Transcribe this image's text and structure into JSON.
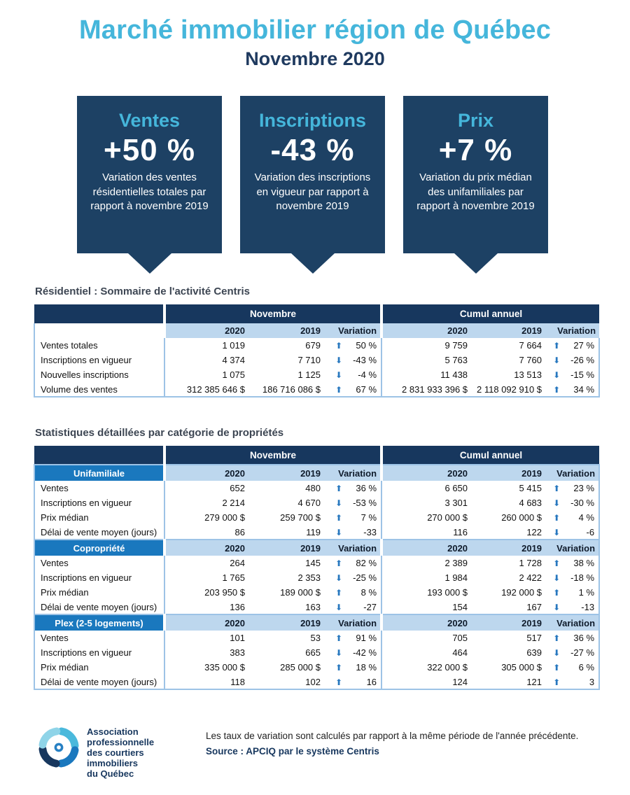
{
  "page": {
    "title": "Marché immobilier région de Québec",
    "subtitle": "Novembre 2020"
  },
  "callouts": [
    {
      "label": "Ventes",
      "value": "+50 %",
      "desc": "Variation des ventes résidentielles totales par rapport à novembre 2019"
    },
    {
      "label": "Inscriptions",
      "value": "-43 %",
      "desc": "Variation des inscriptions en vigueur par rapport à novembre 2019"
    },
    {
      "label": "Prix",
      "value": "+7 %",
      "desc": "Variation du prix médian des unifamiliales par rapport à novembre 2019"
    }
  ],
  "columns": {
    "group_month": "Novembre",
    "group_cumul": "Cumul annuel",
    "y2020": "2020",
    "y2019": "2019",
    "variation": "Variation"
  },
  "summary_table": {
    "title": "Résidentiel : Sommaire de l'activité Centris",
    "rows": [
      {
        "label": "Ventes totales",
        "nov": [
          "1 019",
          "679",
          "up",
          "50 %"
        ],
        "cum": [
          "9 759",
          "7 664",
          "up",
          "27 %"
        ]
      },
      {
        "label": "Inscriptions en vigueur",
        "nov": [
          "4 374",
          "7 710",
          "down",
          "-43 %"
        ],
        "cum": [
          "5 763",
          "7 760",
          "down",
          "-26 %"
        ]
      },
      {
        "label": "Nouvelles inscriptions",
        "nov": [
          "1 075",
          "1 125",
          "down",
          "-4 %"
        ],
        "cum": [
          "11 438",
          "13 513",
          "down",
          "-15 %"
        ]
      },
      {
        "label": "Volume des ventes",
        "nov": [
          "312 385 646 $",
          "186 716 086 $",
          "up",
          "67 %"
        ],
        "cum": [
          "2 831 933 396 $",
          "2 118 092 910 $",
          "up",
          "34 %"
        ]
      }
    ]
  },
  "detail_table": {
    "title": "Statistiques détaillées par catégorie de propriétés",
    "categories": [
      {
        "name": "Unifamiliale",
        "rows": [
          {
            "label": "Ventes",
            "nov": [
              "652",
              "480",
              "up",
              "36 %"
            ],
            "cum": [
              "6 650",
              "5 415",
              "up",
              "23 %"
            ]
          },
          {
            "label": "Inscriptions en vigueur",
            "nov": [
              "2 214",
              "4 670",
              "down",
              "-53 %"
            ],
            "cum": [
              "3 301",
              "4 683",
              "down",
              "-30 %"
            ]
          },
          {
            "label": "Prix médian",
            "nov": [
              "279 000 $",
              "259 700 $",
              "up",
              "7 %"
            ],
            "cum": [
              "270 000 $",
              "260 000 $",
              "up",
              "4 %"
            ]
          },
          {
            "label": "Délai de vente moyen (jours)",
            "nov": [
              "86",
              "119",
              "down",
              "-33"
            ],
            "cum": [
              "116",
              "122",
              "down",
              "-6"
            ]
          }
        ]
      },
      {
        "name": "Copropriété",
        "rows": [
          {
            "label": "Ventes",
            "nov": [
              "264",
              "145",
              "up",
              "82 %"
            ],
            "cum": [
              "2 389",
              "1 728",
              "up",
              "38 %"
            ]
          },
          {
            "label": "Inscriptions en vigueur",
            "nov": [
              "1 765",
              "2 353",
              "down",
              "-25 %"
            ],
            "cum": [
              "1 984",
              "2 422",
              "down",
              "-18 %"
            ]
          },
          {
            "label": "Prix médian",
            "nov": [
              "203 950 $",
              "189 000 $",
              "up",
              "8 %"
            ],
            "cum": [
              "193 000 $",
              "192 000 $",
              "up",
              "1 %"
            ]
          },
          {
            "label": "Délai de vente moyen (jours)",
            "nov": [
              "136",
              "163",
              "down",
              "-27"
            ],
            "cum": [
              "154",
              "167",
              "down",
              "-13"
            ]
          }
        ]
      },
      {
        "name": "Plex (2-5 logements)",
        "rows": [
          {
            "label": "Ventes",
            "nov": [
              "101",
              "53",
              "up",
              "91 %"
            ],
            "cum": [
              "705",
              "517",
              "up",
              "36 %"
            ]
          },
          {
            "label": "Inscriptions en vigueur",
            "nov": [
              "383",
              "665",
              "down",
              "-42 %"
            ],
            "cum": [
              "464",
              "639",
              "down",
              "-27 %"
            ]
          },
          {
            "label": "Prix médian",
            "nov": [
              "335 000 $",
              "285 000 $",
              "up",
              "18 %"
            ],
            "cum": [
              "322 000 $",
              "305 000 $",
              "up",
              "6 %"
            ]
          },
          {
            "label": "Délai de vente moyen (jours)",
            "nov": [
              "118",
              "102",
              "up",
              "16"
            ],
            "cum": [
              "124",
              "121",
              "up",
              "3"
            ]
          }
        ]
      }
    ]
  },
  "footer": {
    "logo_lines": [
      "Association",
      "professionnelle",
      "des courtiers",
      "immobiliers",
      "du Québec"
    ],
    "note": "Les taux de variation sont calculés par rapport à la même période de l'année précédente.",
    "source": "Source : APCIQ par le système Centris"
  },
  "colors": {
    "accent_cyan": "#45b6db",
    "box_navy": "#1d4164",
    "table_header_navy": "#17375e",
    "category_blue": "#1a78be",
    "subheader_light_blue": "#bdd7ee",
    "table_border_blue": "#9dc3e6",
    "arrow_blue": "#2878bf"
  }
}
